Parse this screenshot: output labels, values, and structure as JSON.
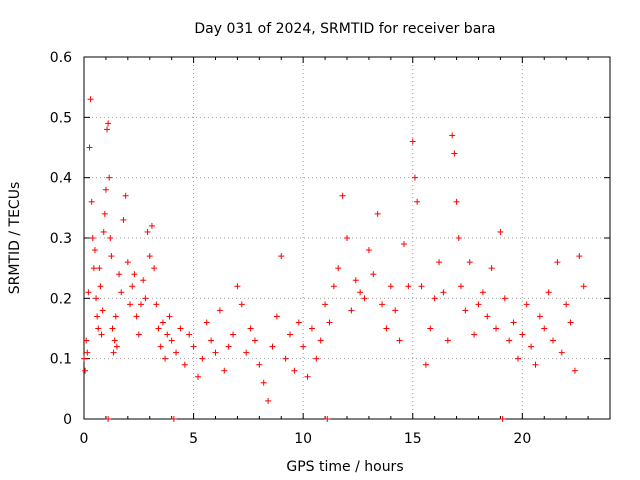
{
  "chart_data": {
    "type": "scatter",
    "title": "Day 031 of 2024, SRMTID for receiver bara",
    "xlabel": "GPS time / hours",
    "ylabel": "SRMTID / TECUs",
    "xlim": [
      0,
      24
    ],
    "ylim": [
      0,
      0.6
    ],
    "x_ticks": [
      0,
      5,
      10,
      15,
      20
    ],
    "x_tick_labels": [
      "0",
      "5",
      "10",
      "15",
      "20"
    ],
    "y_ticks": [
      0,
      0.1,
      0.2,
      0.3,
      0.4,
      0.5,
      0.6
    ],
    "y_tick_labels": [
      "0",
      "0.1",
      "0.2",
      "0.3",
      "0.4",
      "0.5",
      "0.6"
    ],
    "grid": true,
    "marker": "+",
    "color": "#ff0000",
    "series": [
      {
        "name": "SRMTID",
        "x": [
          0.0,
          0.05,
          0.1,
          0.15,
          0.2,
          0.25,
          0.3,
          0.35,
          0.4,
          0.45,
          0.5,
          0.55,
          0.6,
          0.65,
          0.7,
          0.75,
          0.8,
          0.85,
          0.9,
          0.95,
          1.0,
          1.05,
          1.1,
          1.15,
          1.2,
          1.25,
          1.3,
          1.35,
          1.4,
          1.45,
          1.5,
          1.6,
          1.7,
          1.8,
          1.9,
          2.0,
          2.1,
          2.2,
          2.3,
          2.4,
          2.5,
          2.6,
          2.7,
          2.8,
          2.9,
          3.0,
          3.1,
          3.2,
          3.3,
          3.4,
          3.5,
          3.6,
          3.7,
          3.8,
          3.9,
          4.0,
          4.2,
          4.4,
          4.6,
          4.8,
          5.0,
          5.2,
          5.4,
          5.6,
          5.8,
          6.0,
          6.2,
          6.4,
          6.6,
          6.8,
          7.0,
          7.2,
          7.4,
          7.6,
          7.8,
          8.0,
          8.2,
          8.4,
          8.6,
          8.8,
          9.0,
          9.2,
          9.4,
          9.6,
          9.8,
          10.0,
          10.2,
          10.4,
          10.6,
          10.8,
          11.0,
          11.2,
          11.4,
          11.6,
          11.8,
          12.0,
          12.2,
          12.4,
          12.6,
          12.8,
          13.0,
          13.2,
          13.4,
          13.6,
          13.8,
          14.0,
          14.2,
          14.4,
          14.6,
          14.8,
          15.0,
          15.1,
          15.2,
          15.4,
          15.6,
          15.8,
          16.0,
          16.2,
          16.4,
          16.6,
          16.8,
          16.9,
          17.0,
          17.1,
          17.2,
          17.4,
          17.6,
          17.8,
          18.0,
          18.2,
          18.4,
          18.6,
          18.8,
          19.0,
          19.2,
          19.4,
          19.6,
          19.8,
          20.0,
          20.2,
          20.4,
          20.6,
          20.8,
          21.0,
          21.2,
          21.4,
          21.6,
          21.8,
          22.0,
          22.2,
          22.4,
          22.6,
          22.8,
          1.1,
          4.1,
          11.1,
          19.1
        ],
        "y": [
          0.1,
          0.08,
          0.13,
          0.11,
          0.21,
          0.45,
          0.53,
          0.36,
          0.3,
          0.25,
          0.28,
          0.2,
          0.17,
          0.15,
          0.25,
          0.22,
          0.14,
          0.18,
          0.31,
          0.34,
          0.38,
          0.48,
          0.49,
          0.4,
          0.3,
          0.27,
          0.15,
          0.11,
          0.13,
          0.17,
          0.12,
          0.24,
          0.21,
          0.33,
          0.37,
          0.26,
          0.19,
          0.22,
          0.24,
          0.17,
          0.14,
          0.19,
          0.23,
          0.2,
          0.31,
          0.27,
          0.32,
          0.25,
          0.19,
          0.15,
          0.12,
          0.16,
          0.1,
          0.14,
          0.17,
          0.13,
          0.11,
          0.15,
          0.09,
          0.14,
          0.12,
          0.07,
          0.1,
          0.16,
          0.13,
          0.11,
          0.18,
          0.08,
          0.12,
          0.14,
          0.22,
          0.19,
          0.11,
          0.15,
          0.13,
          0.09,
          0.06,
          0.03,
          0.12,
          0.17,
          0.27,
          0.1,
          0.14,
          0.08,
          0.16,
          0.12,
          0.07,
          0.15,
          0.1,
          0.13,
          0.19,
          0.16,
          0.22,
          0.25,
          0.37,
          0.3,
          0.18,
          0.23,
          0.21,
          0.2,
          0.28,
          0.24,
          0.34,
          0.19,
          0.15,
          0.22,
          0.18,
          0.13,
          0.29,
          0.22,
          0.46,
          0.4,
          0.36,
          0.22,
          0.09,
          0.15,
          0.2,
          0.26,
          0.21,
          0.13,
          0.47,
          0.44,
          0.36,
          0.3,
          0.22,
          0.18,
          0.26,
          0.14,
          0.19,
          0.21,
          0.17,
          0.25,
          0.15,
          0.31,
          0.2,
          0.13,
          0.16,
          0.1,
          0.14,
          0.19,
          0.12,
          0.09,
          0.17,
          0.15,
          0.21,
          0.13,
          0.26,
          0.11,
          0.19,
          0.16,
          0.08,
          0.27,
          0.22,
          0.0,
          0.0,
          0.0,
          0.0
        ]
      }
    ]
  }
}
